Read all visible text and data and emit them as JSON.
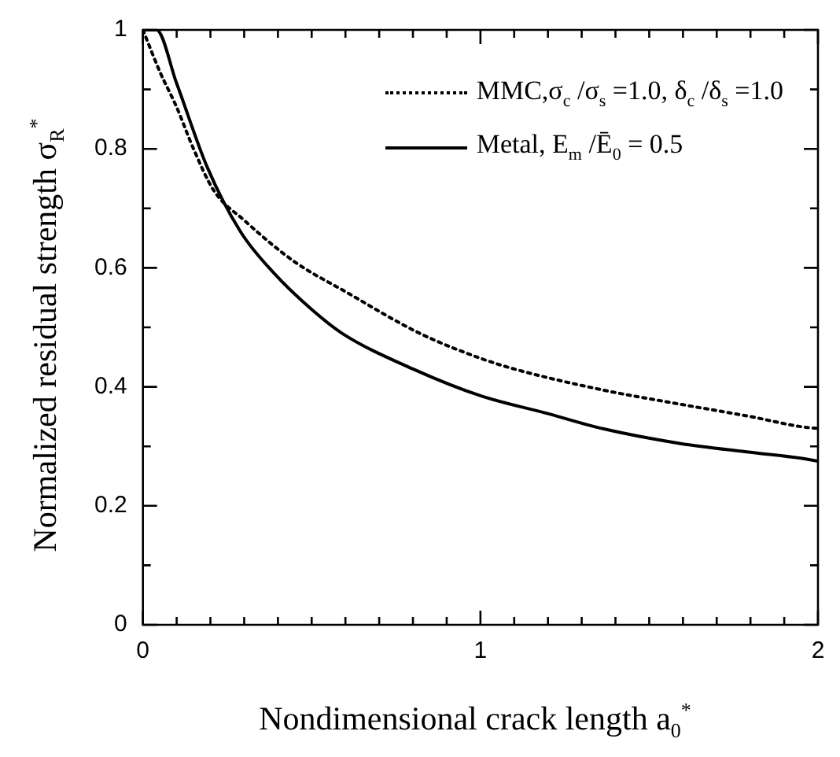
{
  "chart_data": {
    "type": "line",
    "xlabel": "Nondimensional crack length a$_{0}$$^{*}$",
    "ylabel": "Normalized residual strength σ$_{R}$$^{*}$",
    "xlim": [
      0,
      2
    ],
    "ylim": [
      0,
      1
    ],
    "xticks": [
      0,
      {
        "value": 0.1,
        "label": null
      },
      {
        "value": 0.2,
        "label": null
      },
      {
        "value": 0.3,
        "label": null
      },
      {
        "value": 0.4,
        "label": null
      },
      {
        "value": 0.5,
        "label": null
      },
      {
        "value": 0.6,
        "label": null
      },
      {
        "value": 0.7,
        "label": null
      },
      {
        "value": 0.8,
        "label": null
      },
      {
        "value": 0.9,
        "label": null
      },
      1,
      {
        "value": 1.1,
        "label": null
      },
      {
        "value": 1.2,
        "label": null
      },
      {
        "value": 1.3,
        "label": null
      },
      {
        "value": 1.4,
        "label": null
      },
      {
        "value": 1.5,
        "label": null
      },
      {
        "value": 1.6,
        "label": null
      },
      {
        "value": 1.7,
        "label": null
      },
      {
        "value": 1.8,
        "label": null
      },
      {
        "value": 1.9,
        "label": null
      },
      2
    ],
    "yticks": [
      0,
      {
        "value": 0.1,
        "label": null
      },
      0.2,
      {
        "value": 0.3,
        "label": null
      },
      0.4,
      {
        "value": 0.5,
        "label": null
      },
      0.6,
      {
        "value": 0.7,
        "label": null
      },
      0.8,
      {
        "value": 0.9,
        "label": null
      },
      1
    ],
    "grid": false,
    "legend": "top right",
    "marker": "none",
    "series": [
      {
        "name": "MMC,σ$_{c}$ /σ$_{s}$ =1.0,  δ$_{c}$ /δ$_{s}$ =1.0",
        "color": "#000000",
        "line_style": "dotted",
        "x": [
          0,
          0.05,
          0.1,
          0.15,
          0.21,
          0.3,
          0.45,
          0.6,
          0.82,
          1.0,
          1.1,
          1.36,
          1.6,
          1.8,
          1.95,
          2.0
        ],
        "values": [
          1.0,
          0.93,
          0.87,
          0.8,
          0.73,
          0.68,
          0.61,
          0.56,
          0.49,
          0.448,
          0.43,
          0.395,
          0.37,
          0.35,
          0.333,
          0.33
        ]
      },
      {
        "name": "Metal, E$_{m}$ /Ē$_{0}$ = 0.5",
        "color": "#000000",
        "line_style": "solid",
        "x": [
          0,
          0.04,
          0.1,
          0.19,
          0.29,
          0.39,
          0.5,
          0.59,
          0.8,
          1.0,
          1.2,
          1.36,
          1.59,
          1.8,
          1.95,
          2.0
        ],
        "values": [
          1.0,
          1.0,
          0.91,
          0.77,
          0.66,
          0.59,
          0.53,
          0.49,
          0.43,
          0.385,
          0.355,
          0.33,
          0.305,
          0.29,
          0.28,
          0.275
        ]
      }
    ]
  }
}
